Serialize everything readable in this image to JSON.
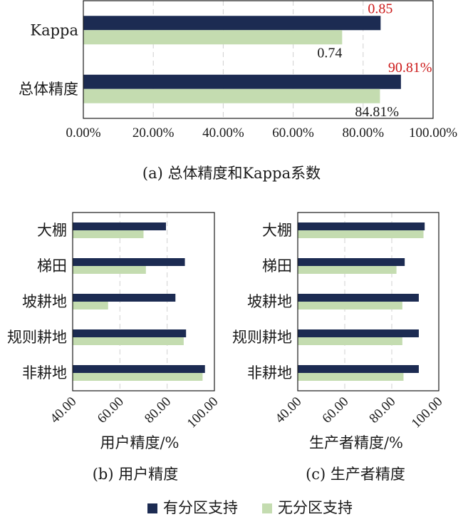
{
  "chart_data": [
    {
      "type": "bar",
      "orientation": "horizontal",
      "categories": [
        "Kappa",
        "总体精度"
      ],
      "series": [
        {
          "name": "有分区支持",
          "values": [
            85,
            90.81
          ],
          "labels": [
            "0.85",
            "90.81%"
          ],
          "label_color": "#cc1a1a"
        },
        {
          "name": "无分区支持",
          "values": [
            74,
            84.81
          ],
          "labels": [
            "0.74",
            "84.81%"
          ],
          "label_color": "#1a1a1a"
        }
      ],
      "xlim": [
        0,
        100
      ],
      "xticks": [
        "0.00%",
        "20.00%",
        "40.00%",
        "60.00%",
        "80.00%",
        "100.00%"
      ],
      "caption": "(a) 总体精度和Kappa系数",
      "grid": "vertical dashed"
    },
    {
      "type": "bar",
      "orientation": "horizontal",
      "categories": [
        "大棚",
        "梯田",
        "坡耕地",
        "规则耕地",
        "非耕地"
      ],
      "series": [
        {
          "name": "有分区支持",
          "values": [
            79.5,
            87.5,
            83.5,
            88,
            96
          ]
        },
        {
          "name": "无分区支持",
          "values": [
            70,
            71,
            55,
            87,
            95
          ]
        }
      ],
      "xlim": [
        40,
        100
      ],
      "xticks": [
        "40.00",
        "60.00",
        "80.00",
        "100.00"
      ],
      "xlabel": "用户精度/%",
      "caption": "(b) 用户精度",
      "grid": "vertical dashed"
    },
    {
      "type": "bar",
      "orientation": "horizontal",
      "categories": [
        "大棚",
        "梯田",
        "坡耕地",
        "规则耕地",
        "非耕地"
      ],
      "series": [
        {
          "name": "有分区支持",
          "values": [
            94,
            85.5,
            91.5,
            91.5,
            91.5
          ]
        },
        {
          "name": "无分区支持",
          "values": [
            93.5,
            82,
            84.5,
            84.5,
            85
          ]
        }
      ],
      "xlim": [
        40,
        100
      ],
      "xticks": [
        "40.00",
        "60.00",
        "80.00",
        "100.00"
      ],
      "xlabel": "生产者精度/%",
      "caption": "(c) 生产者精度",
      "grid": "vertical dashed"
    }
  ],
  "legend": {
    "position": "bottom",
    "items": [
      {
        "name": "有分区支持",
        "color": "#1c2b52"
      },
      {
        "name": "无分区支持",
        "color": "#c4dcb0"
      }
    ]
  },
  "colors": {
    "series_a": "#1c2b52",
    "series_b": "#c4dcb0",
    "highlight_label": "#cc1a1a"
  }
}
